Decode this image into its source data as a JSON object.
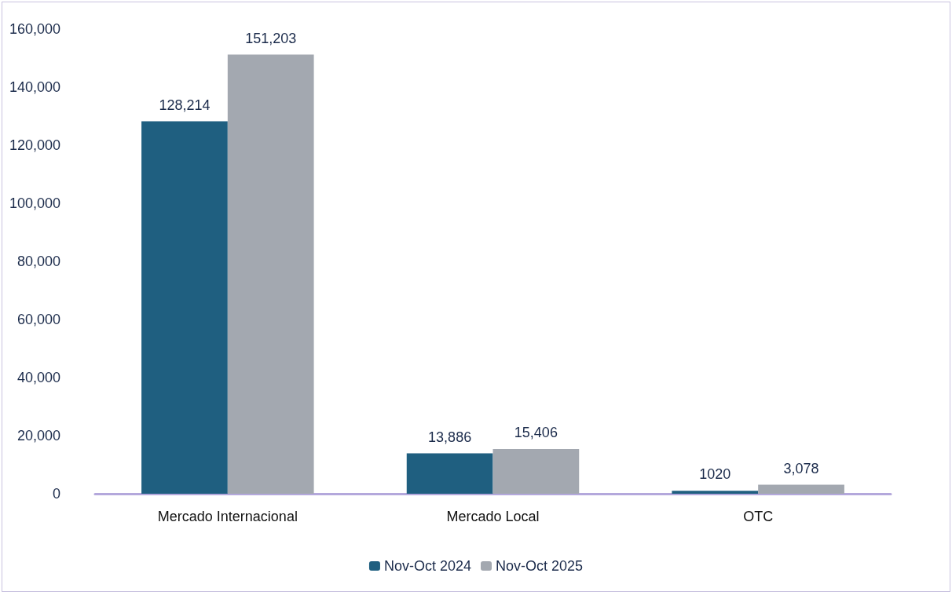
{
  "chart_data": {
    "type": "bar",
    "categories": [
      "Mercado Internacional",
      "Mercado Local",
      "OTC"
    ],
    "series": [
      {
        "name": "Nov-Oct 2024",
        "color": "#1f5f80",
        "values": [
          128214,
          13886,
          1020
        ],
        "value_labels": [
          "128,214",
          "13,886",
          "1020"
        ]
      },
      {
        "name": "Nov-Oct 2025",
        "color": "#a3a8b0",
        "values": [
          151203,
          15406,
          3078
        ],
        "value_labels": [
          "151,203",
          "15,406",
          "3,078"
        ]
      }
    ],
    "ylim": [
      0,
      160000
    ],
    "yticks": [
      0,
      {
        "value": 20000,
        "label": "20,000"
      },
      {
        "value": 40000,
        "label": "40,000"
      },
      {
        "value": 60000,
        "label": "60,000"
      },
      {
        "value": 80000,
        "label": "80,000"
      },
      {
        "value": 100000,
        "label": "100,000"
      },
      {
        "value": 120000,
        "label": "120,000"
      },
      {
        "value": 140000,
        "label": "140,000"
      },
      {
        "value": 160000,
        "label": "160,000"
      }
    ],
    "grid": false,
    "legend": "bottom"
  }
}
